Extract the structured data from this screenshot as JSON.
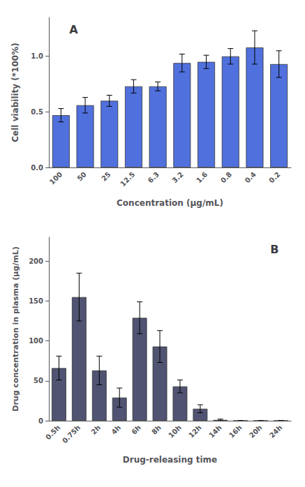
{
  "chart_data": [
    {
      "type": "bar",
      "annotations": [
        "A"
      ],
      "xlabel": "Concentration (μg/mL)",
      "ylabel": "Cell viability (*100%)",
      "categories": [
        "100",
        "50",
        "25",
        "12.5",
        "6.3",
        "3.2",
        "1.6",
        "0.8",
        "0.4",
        "0.2"
      ],
      "values": [
        0.47,
        0.56,
        0.6,
        0.73,
        0.73,
        0.94,
        0.95,
        1.0,
        1.08,
        0.93
      ],
      "errors": [
        0.06,
        0.07,
        0.05,
        0.06,
        0.04,
        0.08,
        0.06,
        0.07,
        0.15,
        0.12
      ],
      "ylim": [
        0.0,
        1.35
      ],
      "yticks": [
        {
          "value": 0,
          "label": "0.0"
        },
        0.5,
        {
          "value": 1,
          "label": "1.0"
        }
      ],
      "grid": false
    },
    {
      "type": "bar",
      "annotations": [
        "B"
      ],
      "xlabel": "Drug-releasing time",
      "ylabel": "Drug concentration in plasma (μg/mL)",
      "categories": [
        "0.5h",
        "0.75h",
        "2h",
        "4h",
        "6h",
        "8h",
        "10h",
        "12h",
        "14h",
        "16h",
        "20h",
        "24h"
      ],
      "values": [
        66,
        155,
        63,
        29,
        129,
        93,
        43,
        15,
        1,
        0,
        0,
        0
      ],
      "errors": [
        15,
        30,
        18,
        12,
        20,
        20,
        8,
        5,
        1,
        0,
        0,
        0
      ],
      "ylim": [
        0,
        230
      ],
      "yticks": [
        0,
        50,
        100,
        150,
        200
      ],
      "grid": false
    }
  ]
}
